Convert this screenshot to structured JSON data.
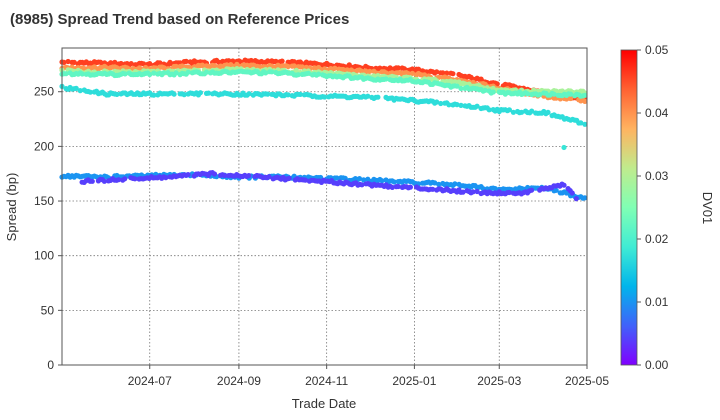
{
  "chart_data": {
    "type": "scatter",
    "title": "(8985)   Spread Trend based on Reference Prices",
    "xlabel": "Trade Date",
    "ylabel": "Spread (bp)",
    "ylim": [
      0,
      290
    ],
    "xlim": [
      "2024-05-01",
      "2025-05-01"
    ],
    "x_ticks": [
      "2024-07",
      "2024-09",
      "2024-11",
      "2025-01",
      "2025-03",
      "2025-05"
    ],
    "y_ticks": [
      0,
      50,
      100,
      150,
      200,
      250
    ],
    "grid": true,
    "colorbar": {
      "label": "DV01",
      "range": [
        0.0,
        0.05
      ],
      "ticks": [
        "0.00",
        "0.01",
        "0.02",
        "0.03",
        "0.04",
        "0.05"
      ],
      "colormap": "rainbow"
    },
    "series": [
      {
        "dv01": 0.046,
        "points": [
          [
            "2024-05-01",
            277
          ],
          [
            "2024-06-01",
            276
          ],
          [
            "2024-07-01",
            275
          ],
          [
            "2024-08-01",
            277
          ],
          [
            "2024-09-01",
            278
          ],
          [
            "2024-10-01",
            277
          ],
          [
            "2024-11-01",
            275
          ],
          [
            "2024-12-01",
            272
          ],
          [
            "2025-01-01",
            270
          ],
          [
            "2025-02-01",
            265
          ],
          [
            "2025-03-01",
            257
          ],
          [
            "2025-04-01",
            249
          ],
          [
            "2025-05-01",
            243
          ]
        ]
      },
      {
        "dv01": 0.04,
        "points": [
          [
            "2024-05-01",
            272
          ],
          [
            "2024-06-01",
            272
          ],
          [
            "2024-07-01",
            271
          ],
          [
            "2024-08-01",
            273
          ],
          [
            "2024-09-01",
            274
          ],
          [
            "2024-10-01",
            273
          ],
          [
            "2024-11-01",
            271
          ],
          [
            "2024-12-01",
            268
          ],
          [
            "2025-01-01",
            266
          ],
          [
            "2025-02-01",
            261
          ],
          [
            "2025-03-01",
            253
          ],
          [
            "2025-04-01",
            246
          ],
          [
            "2025-05-01",
            241
          ]
        ]
      },
      {
        "dv01": 0.029,
        "points": [
          [
            "2024-05-01",
            269
          ],
          [
            "2024-06-01",
            268
          ],
          [
            "2024-07-01",
            268
          ],
          [
            "2024-08-01",
            269
          ],
          [
            "2024-09-01",
            270
          ],
          [
            "2024-10-01",
            269
          ],
          [
            "2024-11-01",
            267
          ],
          [
            "2024-12-01",
            264
          ],
          [
            "2025-01-01",
            262
          ],
          [
            "2025-02-01",
            258
          ],
          [
            "2025-03-01",
            251
          ],
          [
            "2025-04-01",
            250
          ],
          [
            "2025-05-01",
            250
          ]
        ]
      },
      {
        "dv01": 0.022,
        "points": [
          [
            "2024-05-01",
            267
          ],
          [
            "2024-06-01",
            266
          ],
          [
            "2024-07-01",
            266
          ],
          [
            "2024-08-01",
            267
          ],
          [
            "2024-09-01",
            268
          ],
          [
            "2024-10-01",
            267
          ],
          [
            "2024-11-01",
            265
          ],
          [
            "2024-12-01",
            262
          ],
          [
            "2025-01-01",
            260
          ],
          [
            "2025-02-01",
            254
          ],
          [
            "2025-03-01",
            249
          ],
          [
            "2025-04-01",
            248
          ],
          [
            "2025-05-01",
            247
          ]
        ]
      },
      {
        "dv01": 0.017,
        "points": [
          [
            "2024-05-01",
            254
          ],
          [
            "2024-06-01",
            248
          ],
          [
            "2024-07-01",
            248
          ],
          [
            "2024-08-01",
            248
          ],
          [
            "2024-09-01",
            248
          ],
          [
            "2024-10-01",
            247
          ],
          [
            "2024-11-01",
            246
          ],
          [
            "2024-12-01",
            245
          ],
          [
            "2025-01-01",
            242
          ],
          [
            "2025-02-01",
            238
          ],
          [
            "2025-03-01",
            233
          ],
          [
            "2025-04-01",
            231
          ],
          [
            "2025-05-01",
            220
          ]
        ]
      },
      {
        "dv01": 0.018,
        "points": [
          [
            "2025-04-15",
            199
          ]
        ]
      },
      {
        "dv01": 0.01,
        "points": [
          [
            "2024-05-01",
            173
          ],
          [
            "2024-06-01",
            172
          ],
          [
            "2024-07-01",
            173
          ],
          [
            "2024-08-01",
            174
          ],
          [
            "2024-09-01",
            172
          ],
          [
            "2024-10-01",
            172
          ],
          [
            "2024-11-01",
            171
          ],
          [
            "2024-12-01",
            169
          ],
          [
            "2025-01-01",
            167
          ],
          [
            "2025-02-01",
            165
          ],
          [
            "2025-03-01",
            160
          ],
          [
            "2025-04-01",
            162
          ],
          [
            "2025-05-01",
            152
          ]
        ]
      },
      {
        "dv01": 0.004,
        "points": [
          [
            "2024-05-15",
            168
          ],
          [
            "2024-06-15",
            170
          ],
          [
            "2024-07-15",
            172
          ],
          [
            "2024-08-15",
            175
          ],
          [
            "2025-02-15",
            158
          ],
          [
            "2025-03-15",
            157
          ],
          [
            "2025-04-15",
            165
          ],
          [
            "2025-04-25",
            150
          ]
        ]
      }
    ]
  }
}
